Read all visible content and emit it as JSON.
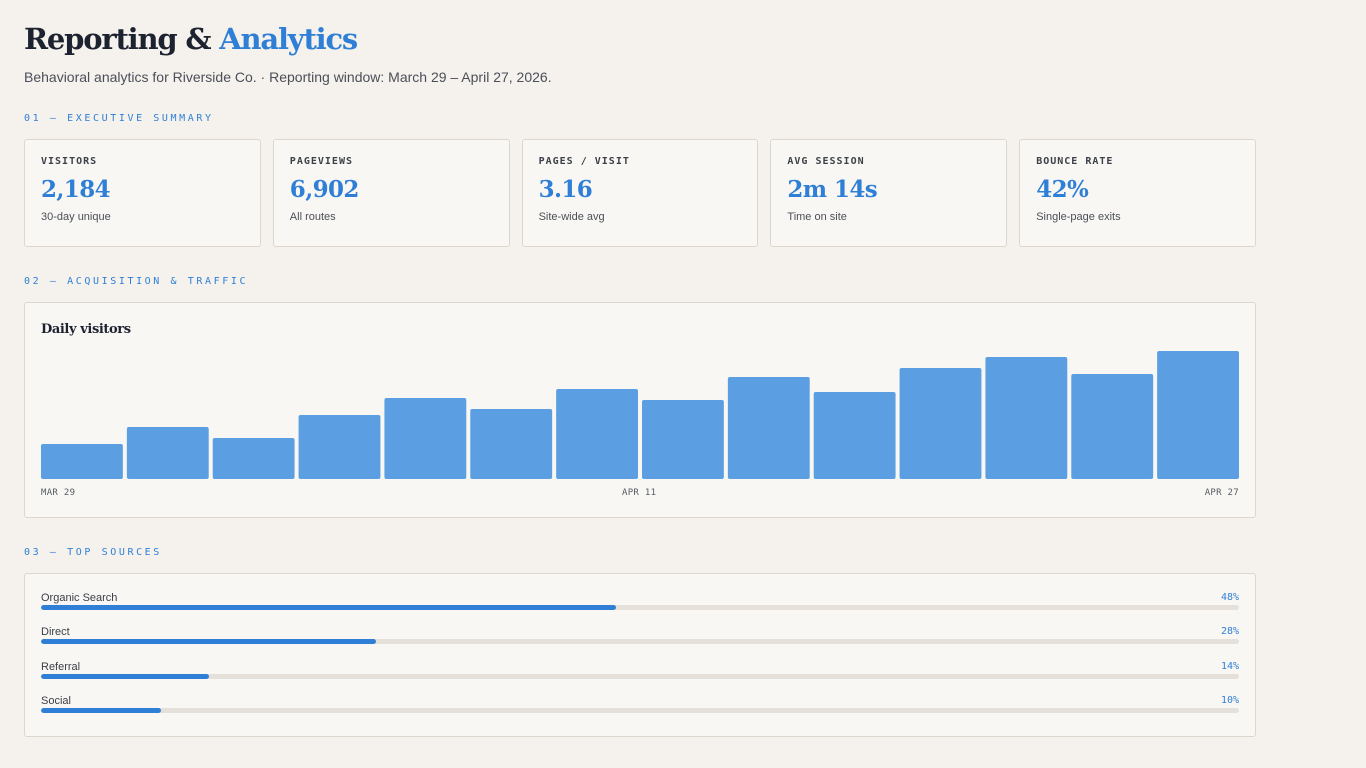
{
  "header": {
    "title_main": "Reporting & ",
    "title_accent": "Analytics",
    "subtitle": "Behavioral analytics for Riverside Co. · Reporting window: March 29 – April 27, 2026."
  },
  "sections": {
    "summary": "01 — EXECUTIVE SUMMARY",
    "acquisition": "02 — ACQUISITION & TRAFFIC",
    "sources": "03 — TOP SOURCES"
  },
  "kpis": [
    {
      "label": "VISITORS",
      "value": "2,184",
      "note": "30-day unique"
    },
    {
      "label": "PAGEVIEWS",
      "value": "6,902",
      "note": "All routes"
    },
    {
      "label": "PAGES / VISIT",
      "value": "3.16",
      "note": "Site-wide avg"
    },
    {
      "label": "AVG SESSION",
      "value": "2m 14s",
      "note": "Time on site"
    },
    {
      "label": "BOUNCE RATE",
      "value": "42%",
      "note": "Single-page exits"
    }
  ],
  "chart_data": {
    "type": "bar",
    "title": "Daily visitors",
    "tick_labels": [
      "MAR 29",
      "APR 11",
      "APR 27"
    ],
    "values": [
      35,
      52,
      41,
      64,
      81,
      70,
      90,
      79,
      102,
      87,
      111,
      122,
      105,
      128
    ],
    "ylim": [
      0,
      128
    ],
    "color": "#5b9fe2",
    "grid": false,
    "legend": "none"
  },
  "sources": [
    {
      "name": "Organic Search",
      "pct_label": "48%",
      "value": 48
    },
    {
      "name": "Direct",
      "pct_label": "28%",
      "value": 28
    },
    {
      "name": "Referral",
      "pct_label": "14%",
      "value": 14
    },
    {
      "name": "Social",
      "pct_label": "10%",
      "value": 10
    }
  ],
  "colors": {
    "accent": "#2f7fd6",
    "bar": "#5b9fe2",
    "background": "#f5f2ee",
    "card": "#f9f7f4",
    "track": "#e6e0da"
  }
}
